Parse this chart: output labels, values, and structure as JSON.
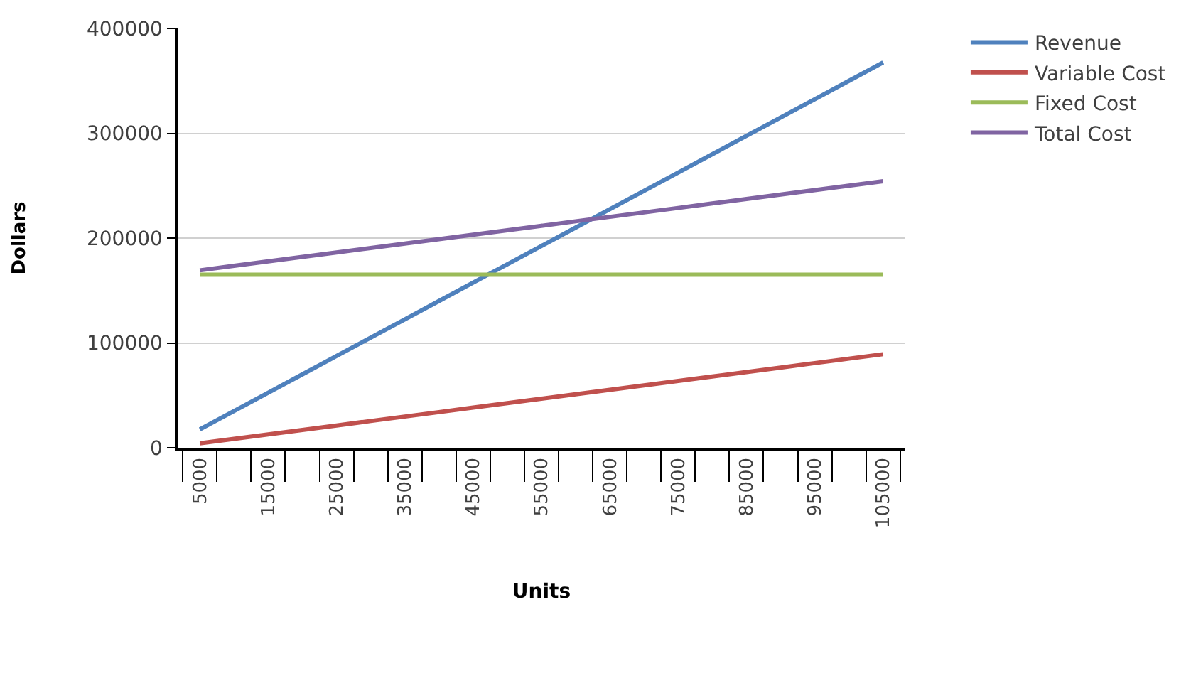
{
  "chart_data": {
    "type": "line",
    "xlabel": "Units",
    "ylabel": "Dollars",
    "categories": [
      "5000",
      null,
      "15000",
      null,
      "25000",
      null,
      "35000",
      null,
      "45000",
      null,
      "55000",
      null,
      "65000",
      null,
      "75000",
      null,
      "85000",
      null,
      "95000",
      null,
      "105000"
    ],
    "series": [
      {
        "name": "Revenue",
        "color": "#4f81bd",
        "values": [
          17500,
          35000,
          52500,
          70000,
          87500,
          105000,
          122500,
          140000,
          157500,
          175000,
          192500,
          210000,
          227500,
          245000,
          262500,
          280000,
          297500,
          315000,
          332500,
          350000,
          367500
        ]
      },
      {
        "name": "Variable Cost",
        "color": "#c0504d",
        "values": [
          4250,
          8500,
          12750,
          17000,
          21250,
          25500,
          29750,
          34000,
          38250,
          42500,
          46750,
          51000,
          55250,
          59500,
          63750,
          68000,
          72250,
          76500,
          80750,
          85000,
          89250
        ]
      },
      {
        "name": "Fixed Cost",
        "color": "#9bbb59",
        "values": [
          165000,
          165000,
          165000,
          165000,
          165000,
          165000,
          165000,
          165000,
          165000,
          165000,
          165000,
          165000,
          165000,
          165000,
          165000,
          165000,
          165000,
          165000,
          165000,
          165000,
          165000
        ]
      },
      {
        "name": "Total Cost",
        "color": "#8064a2",
        "values": [
          169250,
          173500,
          177750,
          182000,
          186250,
          190500,
          194750,
          199000,
          203250,
          207500,
          211750,
          216000,
          220250,
          224500,
          228750,
          233000,
          237250,
          241500,
          245750,
          250000,
          254250
        ]
      }
    ],
    "ylim": [
      0,
      400000
    ],
    "yticks": [
      0,
      100000,
      200000,
      300000,
      400000
    ],
    "grid": "y",
    "legend": "top right",
    "marker": "none",
    "line_style": "solid"
  }
}
